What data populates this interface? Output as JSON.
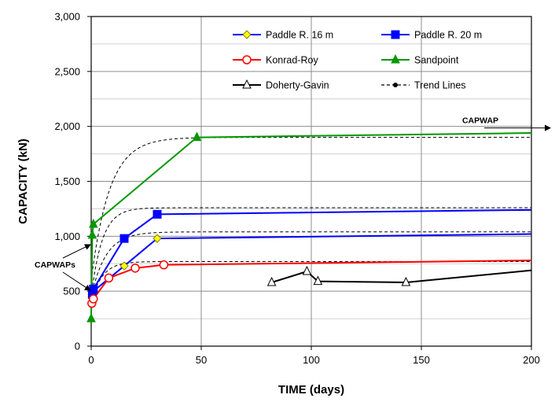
{
  "chart_data": {
    "type": "line",
    "xlabel": "TIME (days)",
    "ylabel": "CAPACITY  (kN)",
    "xlim": [
      0,
      200
    ],
    "ylim": [
      0,
      3000
    ],
    "xticks": [
      0,
      50,
      100,
      150,
      200
    ],
    "xtick_labels": [
      "0",
      "50",
      "100",
      "150",
      "200"
    ],
    "yticks": [
      0,
      500,
      1000,
      1500,
      2000,
      2500,
      3000
    ],
    "ytick_labels": [
      "0",
      "500",
      "1,000",
      "1,500",
      "2,000",
      "2,500",
      "3,000"
    ],
    "grid": true,
    "legend_position": "top-right",
    "series": [
      {
        "name": "Paddle R. 16  m",
        "color": "#0000ff",
        "marker": "diamond",
        "marker_fill": "#ffff00",
        "points": [
          [
            0.5,
            450
          ],
          [
            1,
            500
          ],
          [
            15,
            730
          ],
          [
            30,
            980
          ]
        ],
        "line_points": [
          [
            0.5,
            450
          ],
          [
            1,
            500
          ],
          [
            15,
            730
          ],
          [
            30,
            980
          ],
          [
            200,
            1020
          ]
        ]
      },
      {
        "name": "Paddle R. 20  m",
        "color": "#0000ff",
        "marker": "square",
        "marker_fill": "#0000ff",
        "points": [
          [
            0.5,
            470
          ],
          [
            1,
            520
          ],
          [
            15,
            980
          ],
          [
            30,
            1200
          ]
        ],
        "line_points": [
          [
            0.5,
            470
          ],
          [
            1,
            520
          ],
          [
            15,
            980
          ],
          [
            30,
            1200
          ],
          [
            200,
            1240
          ]
        ]
      },
      {
        "name": "Konrad-Roy",
        "color": "#ff0000",
        "marker": "circle",
        "marker_fill": "none",
        "points": [
          [
            0.3,
            390
          ],
          [
            1,
            430
          ],
          [
            8,
            620
          ],
          [
            20,
            710
          ],
          [
            33,
            740
          ]
        ],
        "line_points": [
          [
            0.3,
            390
          ],
          [
            1,
            430
          ],
          [
            8,
            620
          ],
          [
            20,
            710
          ],
          [
            33,
            740
          ],
          [
            200,
            780
          ]
        ]
      },
      {
        "name": "Sandpoint",
        "color": "#009900",
        "marker": "triangle",
        "marker_fill": "#009900",
        "points": [
          [
            0,
            250
          ],
          [
            0.5,
            1010
          ],
          [
            1,
            1110
          ],
          [
            48,
            1900
          ]
        ],
        "line_points": [
          [
            0,
            250
          ],
          [
            0.5,
            1010
          ],
          [
            1,
            1110
          ],
          [
            48,
            1900
          ],
          [
            200,
            1940
          ]
        ]
      },
      {
        "name": "Doherty-Gavin",
        "color": "#000000",
        "marker": "triangle",
        "marker_fill": "none",
        "points": [
          [
            82,
            580
          ],
          [
            98,
            680
          ],
          [
            103,
            590
          ],
          [
            143,
            580
          ]
        ],
        "line_points": [
          [
            82,
            580
          ],
          [
            98,
            680
          ],
          [
            103,
            590
          ],
          [
            143,
            580
          ],
          [
            200,
            690
          ]
        ]
      },
      {
        "name": "Trend Lines",
        "color": "#000000",
        "marker": "dot",
        "dashed": true,
        "points": [],
        "trend_curves": [
          {
            "y0": 600,
            "yinf": 1900,
            "k": 0.12
          },
          {
            "y0": 450,
            "yinf": 1260,
            "k": 0.2
          },
          {
            "y0": 450,
            "yinf": 1040,
            "k": 0.15
          },
          {
            "y0": 400,
            "yinf": 770,
            "k": 0.2
          }
        ]
      }
    ],
    "annotations": [
      {
        "text": "CAPWAP",
        "arrow_from": [
          200,
          1940
        ],
        "arrow_to": [
          210,
          1940
        ]
      },
      {
        "text": "CAPWAPs",
        "arrow_targets": [
          [
            0,
            1010
          ],
          [
            0,
            450
          ]
        ]
      }
    ]
  },
  "colors": {
    "grid": "#8c8c8c",
    "frame": "#000000",
    "background": "#ffffff"
  }
}
